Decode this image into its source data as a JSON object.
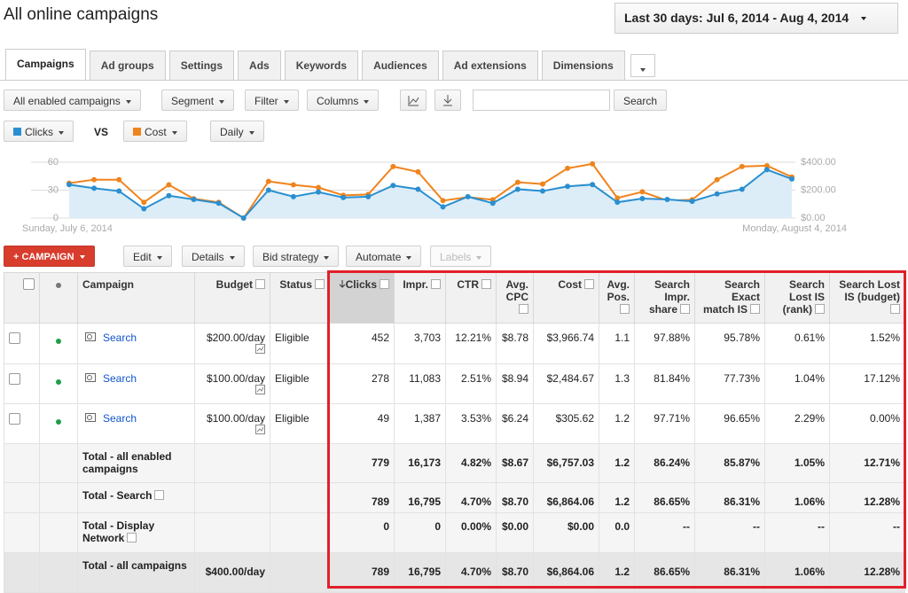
{
  "header": {
    "title": "All online campaigns",
    "date_range": "Last 30 days: Jul 6, 2014 - Aug 4, 2014"
  },
  "tabs": [
    "Campaigns",
    "Ad groups",
    "Settings",
    "Ads",
    "Keywords",
    "Audiences",
    "Ad extensions",
    "Dimensions"
  ],
  "toolbar": {
    "scope": "All enabled campaigns",
    "segment": "Segment",
    "filter": "Filter",
    "columns": "Columns",
    "search_button": "Search"
  },
  "metric_selector": {
    "vs": "VS",
    "interval": "Daily"
  },
  "chart_data": {
    "type": "line",
    "categories": [
      "Sunday, July 6, 2014",
      null,
      null,
      null,
      null,
      null,
      null,
      null,
      null,
      null,
      null,
      null,
      null,
      null,
      null,
      null,
      null,
      null,
      null,
      null,
      null,
      null,
      null,
      null,
      null,
      null,
      null,
      null,
      null,
      "Monday, August 4, 2014"
    ],
    "series": [
      {
        "name": "Clicks",
        "color": "#2a8fd0",
        "values": [
          36,
          32,
          29,
          10,
          24,
          20,
          16,
          0,
          30,
          23,
          28,
          22,
          23,
          35,
          31,
          12,
          23,
          16,
          31,
          29,
          34,
          36,
          17,
          21,
          20,
          18,
          26,
          31,
          52,
          42
        ]
      },
      {
        "name": "Cost",
        "color": "#f0841c",
        "axis": "y2",
        "values": [
          250,
          275,
          275,
          113,
          238,
          138,
          113,
          0,
          263,
          238,
          219,
          163,
          169,
          369,
          331,
          125,
          150,
          131,
          256,
          244,
          356,
          388,
          144,
          188,
          125,
          131,
          275,
          369,
          375,
          294
        ]
      }
    ],
    "ylim": [
      0,
      60
    ],
    "yticks": [
      0,
      30,
      60
    ],
    "y2lim": [
      0,
      400
    ],
    "y2ticks": [
      {
        "value": 0,
        "label": "$0.00"
      },
      {
        "value": 200,
        "label": "$200.00"
      },
      {
        "value": 400,
        "label": "$400.00"
      }
    ],
    "grid": true
  },
  "actions": {
    "new_campaign": "+ CAMPAIGN",
    "edit": "Edit",
    "details": "Details",
    "bid_strategy": "Bid strategy",
    "automate": "Automate",
    "labels": "Labels"
  },
  "table": {
    "columns": [
      "Campaign",
      "Budget",
      "Status",
      "Clicks",
      "Impr.",
      "CTR",
      "Avg. CPC",
      "Cost",
      "Avg. Pos.",
      "Search Impr. share",
      "Search Exact match IS",
      "Search Lost IS (rank)",
      "Search Lost IS (budget)"
    ],
    "campaigns": [
      {
        "name": "Search",
        "budget": "$200.00/day",
        "status": "Eligible",
        "values": [
          "452",
          "3,703",
          "12.21%",
          "$8.78",
          "$3,966.74",
          "1.1",
          "97.88%",
          "95.78%",
          "0.61%",
          "1.52%"
        ]
      },
      {
        "name": "Search",
        "budget": "$100.00/day",
        "status": "Eligible",
        "values": [
          "278",
          "11,083",
          "2.51%",
          "$8.94",
          "$2,484.67",
          "1.3",
          "81.84%",
          "77.73%",
          "1.04%",
          "17.12%"
        ]
      },
      {
        "name": "Search",
        "budget": "$100.00/day",
        "status": "Eligible",
        "values": [
          "49",
          "1,387",
          "3.53%",
          "$6.24",
          "$305.62",
          "1.2",
          "97.71%",
          "96.65%",
          "2.29%",
          "0.00%"
        ]
      }
    ],
    "totals": [
      {
        "name": "Total - all enabled campaigns",
        "values": [
          "779",
          "16,173",
          "4.82%",
          "$8.67",
          "$6,757.03",
          "1.2",
          "86.24%",
          "85.87%",
          "1.05%",
          "12.71%"
        ]
      },
      {
        "name": "Total - Search",
        "values": [
          "789",
          "16,795",
          "4.70%",
          "$8.70",
          "$6,864.06",
          "1.2",
          "86.65%",
          "86.31%",
          "1.06%",
          "12.28%"
        ]
      },
      {
        "name": "Total - Display Network",
        "values": [
          "0",
          "0",
          "0.00%",
          "$0.00",
          "$0.00",
          "0.0",
          "--",
          "--",
          "--",
          "--"
        ]
      },
      {
        "name": "Total - all campaigns",
        "budget": "$400.00/day",
        "values": [
          "789",
          "16,795",
          "4.70%",
          "$8.70",
          "$6,864.06",
          "1.2",
          "86.65%",
          "86.31%",
          "1.06%",
          "12.28%"
        ]
      }
    ]
  }
}
